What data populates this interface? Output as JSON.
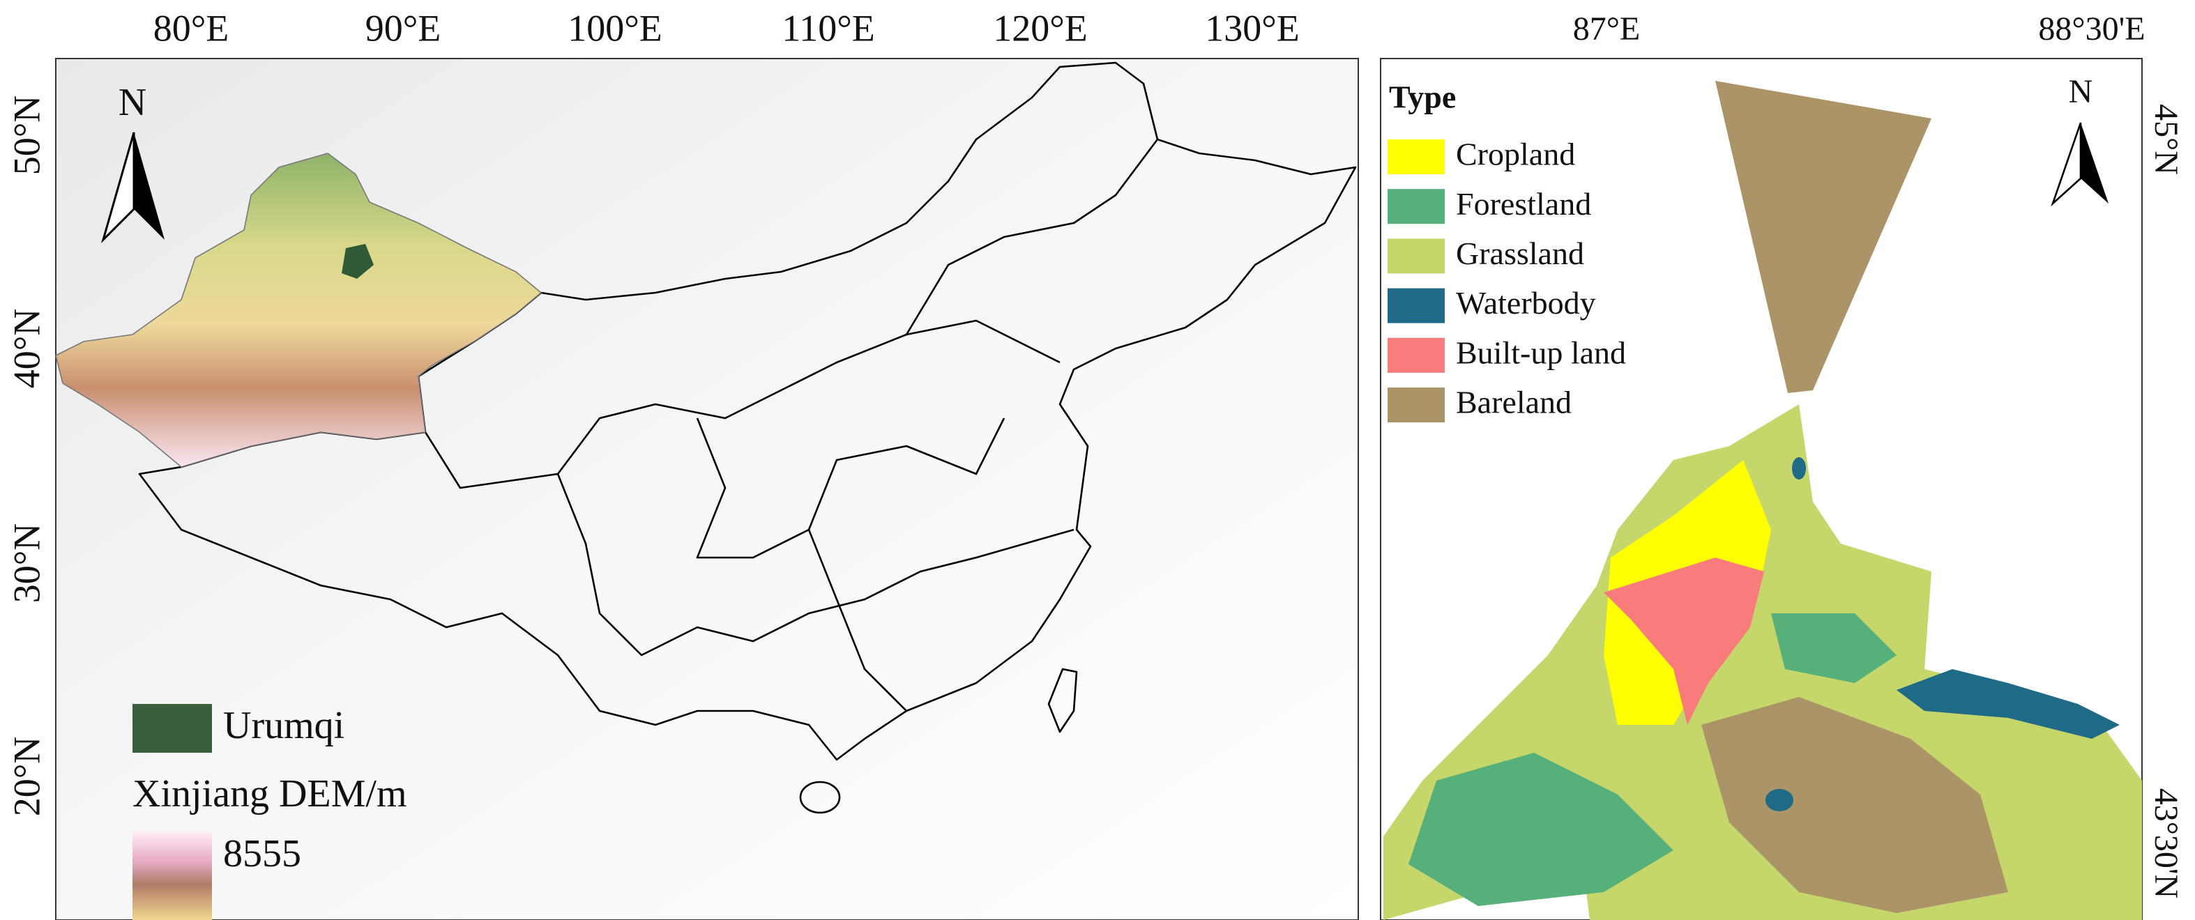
{
  "left_map": {
    "lon_labels": [
      "80°E",
      "90°E",
      "100°E",
      "110°E",
      "120°E",
      "130°E"
    ],
    "lat_labels": [
      "50°N",
      "40°N",
      "30°N",
      "20°N"
    ],
    "north": "N",
    "legend": {
      "urumqi": "Urumqi",
      "dem_title": "Xinjiang DEM/m",
      "dem_max": 8555
    }
  },
  "right_map": {
    "lon_labels": [
      "87°E",
      "88°30'E"
    ],
    "lat_labels": [
      "45°N",
      "43°30'N"
    ],
    "north": "N",
    "legend": {
      "title": "Type",
      "items": [
        {
          "label": "Cropland",
          "color": "#ffff00"
        },
        {
          "label": "Forestland",
          "color": "#55b07a"
        },
        {
          "label": "Grassland",
          "color": "#c5d66a"
        },
        {
          "label": "Waterbody",
          "color": "#1f6a86"
        },
        {
          "label": "Built-up land",
          "color": "#f87c7c"
        },
        {
          "label": "Bareland",
          "color": "#ab9468"
        }
      ]
    }
  }
}
